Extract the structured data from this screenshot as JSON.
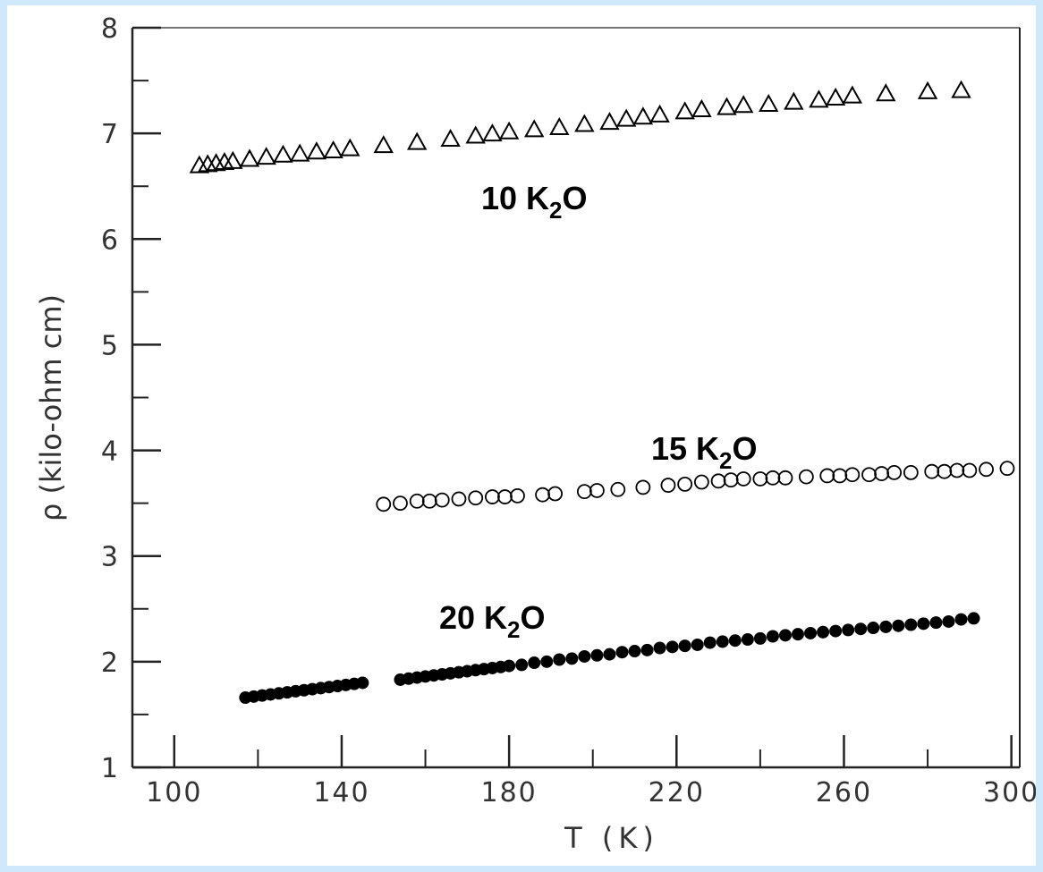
{
  "chart_data": {
    "type": "scatter",
    "title": "",
    "xlabel": "T (K)",
    "ylabel": "ρ (kilo-ohm cm)",
    "xlim": [
      90,
      302
    ],
    "ylim": [
      1,
      8
    ],
    "xticks": [
      "100",
      "140",
      "180",
      "220",
      "260",
      "300"
    ],
    "yticks": [
      "1",
      "2",
      "3",
      "4",
      "5",
      "6",
      "7",
      "8"
    ],
    "grid": false,
    "legend": "none",
    "series": [
      {
        "name": "10 K2O",
        "label": "10 K",
        "label_sub": "2",
        "label_tail": "O",
        "marker": "triangle-open",
        "color": "#000000",
        "x": [
          106,
          108,
          110,
          112,
          114,
          118,
          122,
          126,
          130,
          134,
          138,
          142,
          150,
          158,
          166,
          172,
          176,
          180,
          186,
          192,
          198,
          204,
          208,
          212,
          216,
          222,
          226,
          232,
          236,
          242,
          248,
          254,
          258,
          262,
          270,
          280,
          288
        ],
        "y": [
          6.69,
          6.7,
          6.71,
          6.72,
          6.73,
          6.75,
          6.77,
          6.79,
          6.8,
          6.82,
          6.83,
          6.85,
          6.88,
          6.91,
          6.94,
          6.97,
          6.99,
          7.01,
          7.03,
          7.05,
          7.08,
          7.1,
          7.13,
          7.15,
          7.17,
          7.2,
          7.22,
          7.24,
          7.26,
          7.27,
          7.29,
          7.31,
          7.33,
          7.35,
          7.37,
          7.39,
          7.4
        ]
      },
      {
        "name": "15 K2O",
        "label": "15 K",
        "label_sub": "2",
        "label_tail": "O",
        "marker": "circle-open",
        "color": "#000000",
        "x": [
          150,
          154,
          158,
          161,
          164,
          168,
          172,
          176,
          179,
          182,
          188,
          191,
          198,
          201,
          206,
          212,
          218,
          222,
          226,
          230,
          233,
          236,
          240,
          243,
          246,
          251,
          256,
          259,
          262,
          266,
          269,
          272,
          276,
          281,
          284,
          287,
          290,
          294,
          299
        ],
        "y": [
          3.49,
          3.5,
          3.52,
          3.52,
          3.53,
          3.54,
          3.55,
          3.56,
          3.56,
          3.57,
          3.58,
          3.59,
          3.61,
          3.62,
          3.63,
          3.65,
          3.67,
          3.68,
          3.7,
          3.71,
          3.72,
          3.73,
          3.73,
          3.74,
          3.74,
          3.75,
          3.76,
          3.76,
          3.77,
          3.77,
          3.78,
          3.79,
          3.79,
          3.8,
          3.8,
          3.81,
          3.81,
          3.82,
          3.83
        ]
      },
      {
        "name": "20 K2O",
        "label": "20 K",
        "label_sub": "2",
        "label_tail": "O",
        "marker": "circle-filled",
        "color": "#000000",
        "x": [
          117,
          119,
          121,
          123,
          125,
          127,
          129,
          131,
          133,
          135,
          137,
          139,
          141,
          143,
          145,
          154,
          156,
          158,
          160,
          162,
          164,
          166,
          168,
          170,
          172,
          174,
          176,
          178,
          180,
          183,
          186,
          189,
          192,
          195,
          198,
          201,
          204,
          207,
          210,
          213,
          216,
          219,
          222,
          225,
          228,
          231,
          234,
          237,
          240,
          243,
          246,
          249,
          252,
          255,
          258,
          261,
          264,
          267,
          270,
          273,
          276,
          279,
          282,
          285,
          288,
          291
        ],
        "y": [
          1.66,
          1.67,
          1.68,
          1.69,
          1.7,
          1.71,
          1.72,
          1.73,
          1.74,
          1.75,
          1.76,
          1.77,
          1.78,
          1.79,
          1.8,
          1.83,
          1.84,
          1.85,
          1.86,
          1.87,
          1.88,
          1.89,
          1.9,
          1.91,
          1.92,
          1.93,
          1.94,
          1.95,
          1.96,
          1.97,
          1.99,
          2.0,
          2.02,
          2.03,
          2.05,
          2.06,
          2.07,
          2.09,
          2.1,
          2.11,
          2.13,
          2.14,
          2.15,
          2.16,
          2.18,
          2.19,
          2.2,
          2.21,
          2.22,
          2.24,
          2.25,
          2.26,
          2.27,
          2.28,
          2.29,
          2.3,
          2.31,
          2.32,
          2.33,
          2.34,
          2.35,
          2.36,
          2.37,
          2.38,
          2.4,
          2.41
        ]
      }
    ]
  }
}
